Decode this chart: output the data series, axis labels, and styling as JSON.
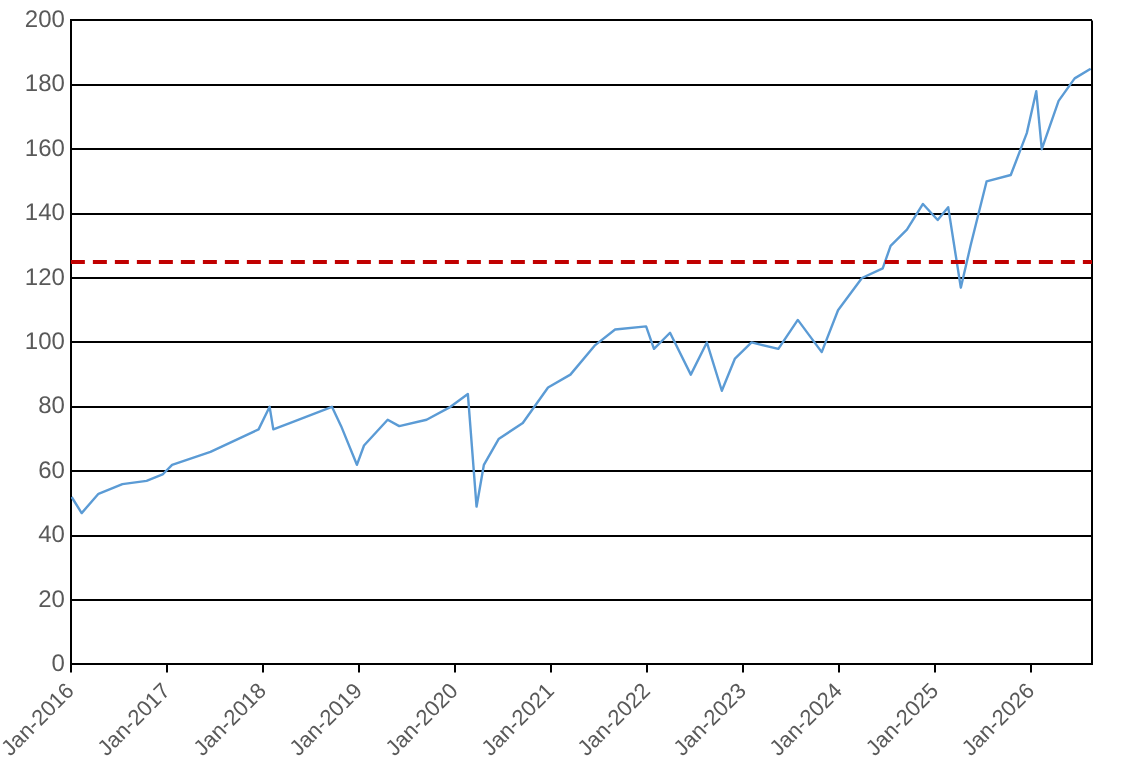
{
  "chart_data": {
    "type": "line",
    "x": [
      "2016-01-04",
      "2016-02-11",
      "2016-04-15",
      "2016-07-15",
      "2016-10-15",
      "2016-12-15",
      "2017-01-20",
      "2017-06-15",
      "2017-12-15",
      "2018-01-26",
      "2018-02-09",
      "2018-04-15",
      "2018-09-20",
      "2018-10-25",
      "2018-12-24",
      "2019-01-20",
      "2019-04-20",
      "2019-06-03",
      "2019-09-15",
      "2019-12-15",
      "2020-02-19",
      "2020-03-23",
      "2020-04-20",
      "2020-06-15",
      "2020-09-15",
      "2020-12-20",
      "2021-03-15",
      "2021-06-15",
      "2021-09-01",
      "2021-12-28",
      "2022-01-27",
      "2022-03-29",
      "2022-06-16",
      "2022-08-16",
      "2022-10-12",
      "2022-12-01",
      "2023-02-02",
      "2023-05-15",
      "2023-07-28",
      "2023-10-27",
      "2023-12-28",
      "2024-03-28",
      "2024-06-15",
      "2024-07-15",
      "2024-09-15",
      "2024-11-15",
      "2025-01-10",
      "2025-02-19",
      "2025-04-08",
      "2025-05-15",
      "2025-07-15",
      "2025-10-15",
      "2025-12-15",
      "2026-01-20",
      "2026-02-10",
      "2026-04-15",
      "2026-06-15",
      "2026-08-15"
    ],
    "series": [
      {
        "color": "#5b9bd5",
        "values": [
          52,
          47,
          53,
          56,
          57,
          59,
          62,
          66,
          73,
          80,
          73,
          75,
          80,
          74,
          62,
          68,
          76,
          74,
          76,
          80,
          84,
          49,
          62,
          70,
          75,
          86,
          90,
          99,
          104,
          105,
          98,
          103,
          90,
          100,
          85,
          95,
          100,
          98,
          107,
          97,
          110,
          120,
          123,
          130,
          135,
          143,
          138,
          142,
          117,
          130,
          150,
          152,
          165,
          178,
          160,
          175,
          182,
          185
        ]
      }
    ],
    "xlim": [
      "2016-01-01",
      "2026-08-20"
    ],
    "xticks": [
      {
        "value": "2016-01-01",
        "label": "Jan-2016"
      },
      {
        "value": "2017-01-01",
        "label": "Jan-2017"
      },
      {
        "value": "2018-01-01",
        "label": "Jan-2018"
      },
      {
        "value": "2019-01-01",
        "label": "Jan-2019"
      },
      {
        "value": "2020-01-01",
        "label": "Jan-2020"
      },
      {
        "value": "2021-01-01",
        "label": "Jan-2021"
      },
      {
        "value": "2022-01-01",
        "label": "Jan-2022"
      },
      {
        "value": "2023-01-01",
        "label": "Jan-2023"
      },
      {
        "value": "2024-01-01",
        "label": "Jan-2024"
      },
      {
        "value": "2025-01-01",
        "label": "Jan-2025"
      },
      {
        "value": "2026-01-01",
        "label": "Jan-2026"
      }
    ],
    "ylim": [
      0,
      200
    ],
    "yticks": [
      0,
      20,
      40,
      60,
      80,
      100,
      120,
      140,
      160,
      180,
      200
    ],
    "ref_lines": [
      {
        "axis": "y",
        "value": 125,
        "color": "#c00000",
        "line_style": "dashed"
      }
    ],
    "grid": "y",
    "marker": "none",
    "line_style": "solid"
  }
}
